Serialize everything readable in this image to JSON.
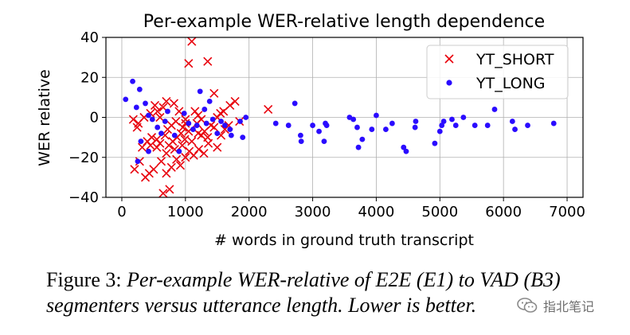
{
  "figure": {
    "caption_lead": "Figure 3:",
    "caption_text": "Per-example WER-relative of E2E (E1) to VAD (B3) segmenters versus utterance length. Lower is better."
  },
  "watermark": {
    "text": "指北笔记",
    "icon": "wechat-icon"
  },
  "chart_data": {
    "type": "scatter",
    "title": "Per-example WER-relative length dependence",
    "xlabel": "# words in ground truth transcript",
    "ylabel": "WER relative",
    "xlim": [
      -250,
      7250
    ],
    "ylim": [
      -40,
      40
    ],
    "xticks": [
      0,
      1000,
      2000,
      3000,
      4000,
      5000,
      6000,
      7000
    ],
    "yticks": [
      -40,
      -20,
      0,
      20,
      40
    ],
    "xtick_labels": [
      "0",
      "1000",
      "2000",
      "3000",
      "4000",
      "5000",
      "6000",
      "7000"
    ],
    "ytick_labels": [
      "−40",
      "−20",
      "0",
      "20",
      "40"
    ],
    "grid": true,
    "legend_position": "top-right",
    "series": [
      {
        "name": "YT_SHORT",
        "marker": "x",
        "color": "#e8000b",
        "points": [
          [
            1100,
            38
          ],
          [
            1050,
            27
          ],
          [
            1350,
            28
          ],
          [
            1450,
            12
          ],
          [
            820,
            7
          ],
          [
            700,
            8
          ],
          [
            650,
            5
          ],
          [
            900,
            3
          ],
          [
            1150,
            3
          ],
          [
            1200,
            1
          ],
          [
            1000,
            -1
          ],
          [
            850,
            -2
          ],
          [
            780,
            -4
          ],
          [
            720,
            -6
          ],
          [
            960,
            -5
          ],
          [
            1050,
            -7
          ],
          [
            1200,
            -8
          ],
          [
            1250,
            -9
          ],
          [
            1300,
            -7
          ],
          [
            1400,
            -4
          ],
          [
            1500,
            0
          ],
          [
            1550,
            2
          ],
          [
            1600,
            3
          ],
          [
            1700,
            6
          ],
          [
            1780,
            8
          ],
          [
            1450,
            -5
          ],
          [
            1350,
            -10
          ],
          [
            1100,
            -12
          ],
          [
            950,
            -14
          ],
          [
            830,
            -16
          ],
          [
            700,
            -18
          ],
          [
            620,
            -22
          ],
          [
            500,
            -26
          ],
          [
            430,
            -28
          ],
          [
            370,
            -30
          ],
          [
            650,
            -38
          ],
          [
            750,
            -36
          ],
          [
            200,
            -26
          ],
          [
            280,
            -22
          ],
          [
            320,
            -15
          ],
          [
            400,
            -12
          ],
          [
            470,
            -10
          ],
          [
            550,
            -11
          ],
          [
            600,
            -13
          ],
          [
            680,
            -9
          ],
          [
            740,
            -14
          ],
          [
            800,
            -12
          ],
          [
            870,
            -10
          ],
          [
            930,
            -8
          ],
          [
            990,
            -11
          ],
          [
            1060,
            -17
          ],
          [
            1130,
            -19
          ],
          [
            1210,
            -16
          ],
          [
            1290,
            -18
          ],
          [
            1360,
            -13
          ],
          [
            1500,
            -15
          ],
          [
            1560,
            -9
          ],
          [
            1620,
            -6
          ],
          [
            1680,
            -4
          ],
          [
            1850,
            -2
          ],
          [
            2300,
            4
          ],
          [
            180,
            -1
          ],
          [
            260,
            -3
          ],
          [
            240,
            -5
          ],
          [
            350,
            0
          ],
          [
            450,
            2
          ],
          [
            520,
            6
          ],
          [
            560,
            3
          ],
          [
            600,
            0
          ],
          [
            1000,
            -20
          ],
          [
            920,
            -24
          ],
          [
            860,
            -21
          ],
          [
            780,
            -25
          ],
          [
            700,
            -28
          ],
          [
            1000,
            -3
          ],
          [
            1180,
            -3
          ],
          [
            1250,
            -1
          ],
          [
            450,
            -14
          ],
          [
            550,
            -15
          ]
        ]
      },
      {
        "name": "YT_LONG",
        "marker": "dot",
        "color": "#2a0bff",
        "points": [
          [
            60,
            9
          ],
          [
            170,
            18
          ],
          [
            280,
            14
          ],
          [
            230,
            5
          ],
          [
            370,
            7
          ],
          [
            420,
            1
          ],
          [
            480,
            -1
          ],
          [
            300,
            -12
          ],
          [
            420,
            -17
          ],
          [
            250,
            -22
          ],
          [
            560,
            -5
          ],
          [
            620,
            -8
          ],
          [
            680,
            -2
          ],
          [
            720,
            3
          ],
          [
            830,
            -9
          ],
          [
            900,
            -17
          ],
          [
            980,
            2
          ],
          [
            1050,
            -3
          ],
          [
            1120,
            -6
          ],
          [
            1180,
            -4
          ],
          [
            1230,
            13
          ],
          [
            1300,
            4
          ],
          [
            1330,
            -3
          ],
          [
            1380,
            8
          ],
          [
            1430,
            -1
          ],
          [
            1500,
            -8
          ],
          [
            1560,
            -2
          ],
          [
            1620,
            -4
          ],
          [
            1700,
            -6
          ],
          [
            1720,
            -9
          ],
          [
            1860,
            -2
          ],
          [
            1900,
            -10
          ],
          [
            1950,
            0
          ],
          [
            2420,
            -3
          ],
          [
            2620,
            -4
          ],
          [
            2720,
            7
          ],
          [
            2810,
            -9
          ],
          [
            2820,
            -12
          ],
          [
            3000,
            -4
          ],
          [
            3100,
            -7
          ],
          [
            3180,
            -12
          ],
          [
            3200,
            -3
          ],
          [
            3220,
            -4
          ],
          [
            3580,
            0
          ],
          [
            3640,
            -1
          ],
          [
            3700,
            -5
          ],
          [
            3720,
            -15
          ],
          [
            3780,
            -11
          ],
          [
            3930,
            -6
          ],
          [
            4000,
            1
          ],
          [
            4150,
            -6
          ],
          [
            4250,
            -3
          ],
          [
            4430,
            -15
          ],
          [
            4470,
            -17
          ],
          [
            4610,
            -5
          ],
          [
            4620,
            -2
          ],
          [
            4920,
            -13
          ],
          [
            5000,
            -7
          ],
          [
            5030,
            -4
          ],
          [
            5060,
            -2
          ],
          [
            5190,
            -1
          ],
          [
            5250,
            -4
          ],
          [
            5370,
            0
          ],
          [
            5550,
            -4
          ],
          [
            5750,
            -4
          ],
          [
            5860,
            4
          ],
          [
            6140,
            -2
          ],
          [
            6180,
            -6
          ],
          [
            6380,
            -4
          ],
          [
            6790,
            -3
          ]
        ]
      }
    ]
  }
}
